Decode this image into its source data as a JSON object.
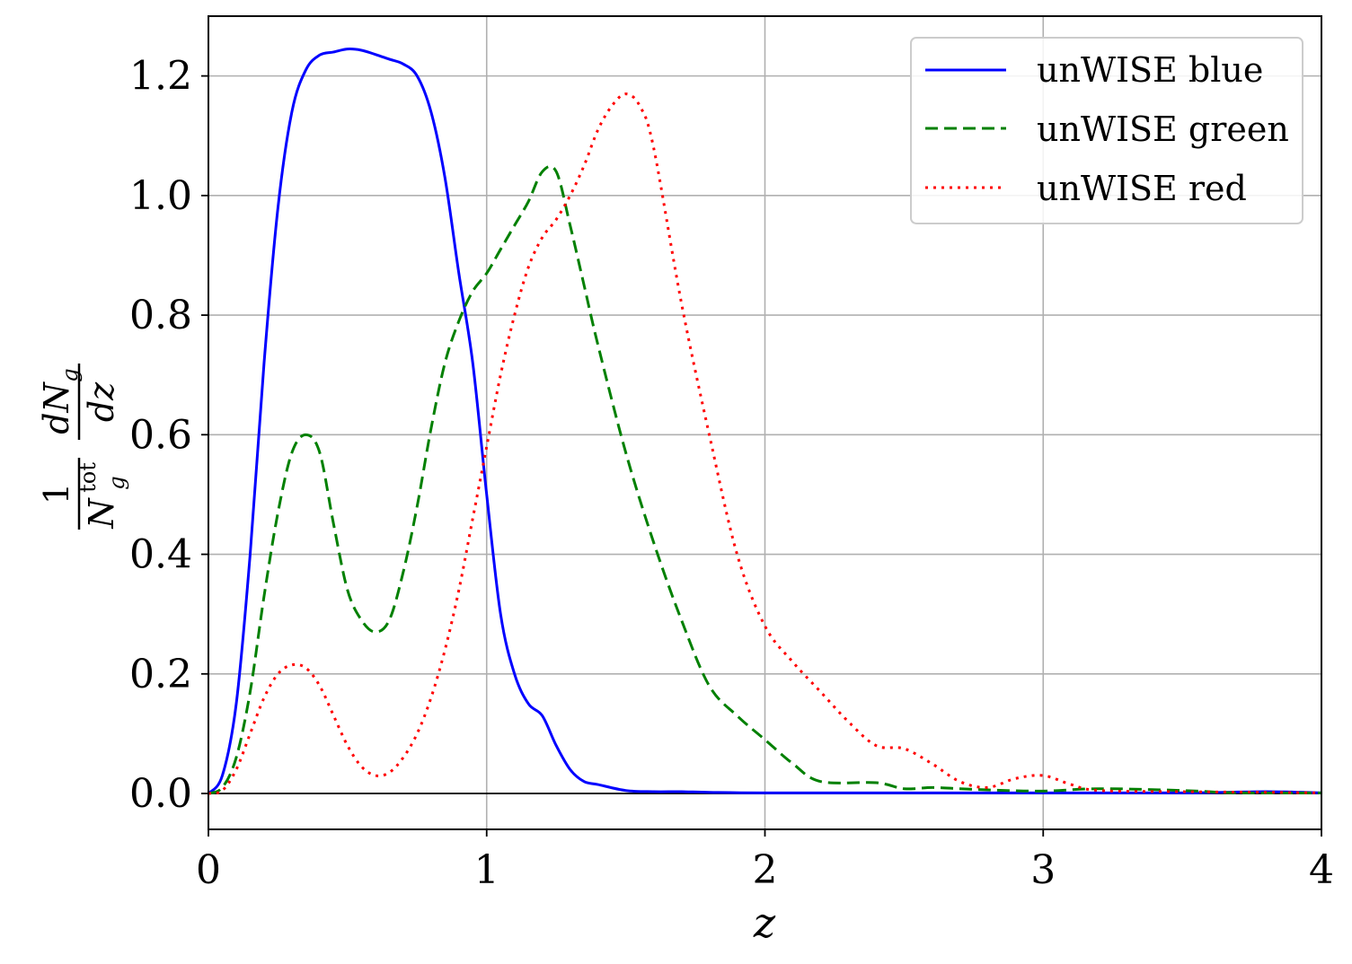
{
  "chart_data": {
    "type": "line",
    "xlabel": "z",
    "ylabel": {
      "numerator_left": "1",
      "denominator_left": "N",
      "denominator_left_sup": "tot",
      "denominator_left_sub": "g",
      "numerator_right": "dN",
      "numerator_right_sub": "g",
      "denominator_right": "dz"
    },
    "xlim": [
      0,
      4
    ],
    "ylim": [
      -0.06,
      1.3
    ],
    "xticks": [
      0,
      1,
      2,
      3,
      4
    ],
    "xtick_labels": [
      "0",
      "1",
      "2",
      "3",
      "4"
    ],
    "yticks": [
      0.0,
      0.2,
      0.4,
      0.6,
      0.8,
      1.0,
      1.2
    ],
    "ytick_labels": [
      "0.0",
      "0.2",
      "0.4",
      "0.6",
      "0.8",
      "1.0",
      "1.2"
    ],
    "grid": true,
    "legend_position": "top-right",
    "series": [
      {
        "name": "unWISE blue",
        "color": "#0000ff",
        "style": "solid",
        "x": [
          0,
          0.05,
          0.1,
          0.15,
          0.2,
          0.25,
          0.3,
          0.35,
          0.4,
          0.45,
          0.5,
          0.55,
          0.6,
          0.65,
          0.7,
          0.75,
          0.8,
          0.85,
          0.9,
          0.95,
          1.0,
          1.05,
          1.1,
          1.15,
          1.2,
          1.25,
          1.3,
          1.35,
          1.4,
          1.5,
          1.6,
          1.7,
          1.8,
          2.0,
          2.5,
          3.0,
          3.5,
          3.8,
          4.0
        ],
        "y": [
          0.0,
          0.03,
          0.15,
          0.4,
          0.72,
          0.98,
          1.14,
          1.21,
          1.235,
          1.24,
          1.245,
          1.243,
          1.236,
          1.228,
          1.22,
          1.2,
          1.14,
          1.03,
          0.87,
          0.72,
          0.5,
          0.3,
          0.2,
          0.15,
          0.13,
          0.08,
          0.04,
          0.02,
          0.015,
          0.005,
          0.003,
          0.003,
          0.002,
          0.001,
          0.001,
          0.001,
          0.001,
          0.003,
          0.001
        ]
      },
      {
        "name": "unWISE green",
        "color": "#008000",
        "style": "dashed",
        "x": [
          0,
          0.05,
          0.1,
          0.15,
          0.2,
          0.25,
          0.3,
          0.35,
          0.4,
          0.45,
          0.5,
          0.55,
          0.6,
          0.65,
          0.7,
          0.75,
          0.8,
          0.85,
          0.9,
          0.95,
          1.0,
          1.05,
          1.1,
          1.15,
          1.2,
          1.25,
          1.3,
          1.35,
          1.4,
          1.5,
          1.6,
          1.7,
          1.8,
          1.9,
          2.0,
          2.1,
          2.2,
          2.4,
          2.5,
          2.6,
          2.7,
          2.8,
          3.0,
          3.2,
          3.5,
          3.7,
          4.0
        ],
        "y": [
          0.0,
          0.01,
          0.06,
          0.17,
          0.33,
          0.47,
          0.57,
          0.6,
          0.57,
          0.45,
          0.34,
          0.29,
          0.27,
          0.29,
          0.37,
          0.48,
          0.61,
          0.72,
          0.79,
          0.84,
          0.87,
          0.91,
          0.95,
          0.99,
          1.04,
          1.04,
          0.95,
          0.85,
          0.75,
          0.57,
          0.42,
          0.29,
          0.18,
          0.13,
          0.09,
          0.05,
          0.02,
          0.018,
          0.008,
          0.01,
          0.008,
          0.006,
          0.004,
          0.008,
          0.005,
          0.001,
          0.001
        ]
      },
      {
        "name": "unWISE red",
        "color": "#ff0000",
        "style": "dotted",
        "x": [
          0,
          0.05,
          0.1,
          0.15,
          0.2,
          0.25,
          0.3,
          0.35,
          0.4,
          0.45,
          0.5,
          0.55,
          0.6,
          0.65,
          0.7,
          0.75,
          0.8,
          0.85,
          0.9,
          0.95,
          1.0,
          1.05,
          1.1,
          1.15,
          1.2,
          1.25,
          1.3,
          1.35,
          1.4,
          1.45,
          1.5,
          1.55,
          1.6,
          1.7,
          1.8,
          1.9,
          2.0,
          2.1,
          2.2,
          2.3,
          2.4,
          2.5,
          2.6,
          2.7,
          2.8,
          2.9,
          3.0,
          3.1,
          3.2,
          3.5,
          3.8,
          4.0
        ],
        "y": [
          0.0,
          0.005,
          0.04,
          0.1,
          0.16,
          0.2,
          0.215,
          0.21,
          0.18,
          0.13,
          0.08,
          0.045,
          0.03,
          0.035,
          0.06,
          0.1,
          0.16,
          0.24,
          0.34,
          0.46,
          0.58,
          0.7,
          0.8,
          0.88,
          0.93,
          0.96,
          1.0,
          1.05,
          1.11,
          1.15,
          1.17,
          1.15,
          1.08,
          0.82,
          0.6,
          0.4,
          0.28,
          0.22,
          0.17,
          0.12,
          0.08,
          0.075,
          0.05,
          0.02,
          0.01,
          0.025,
          0.03,
          0.015,
          0.005,
          0.003,
          0.002,
          0.001
        ]
      }
    ]
  }
}
